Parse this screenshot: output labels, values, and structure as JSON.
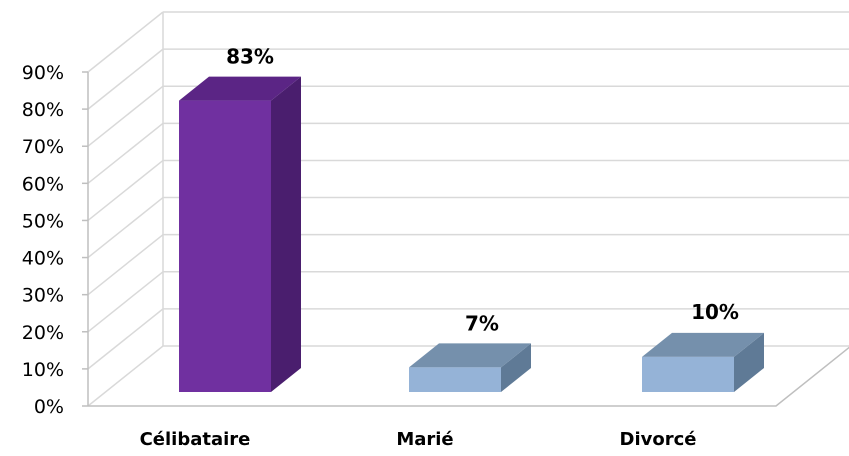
{
  "chart_data": {
    "type": "bar",
    "style": "3d-column",
    "categories": [
      "Célibataire",
      "Marié",
      "Divorcé"
    ],
    "values": [
      83,
      7,
      10
    ],
    "data_labels": [
      "83%",
      "7%",
      "10%"
    ],
    "ylim": [
      0,
      90
    ],
    "yticks": [
      0,
      10,
      20,
      30,
      40,
      50,
      60,
      70,
      80,
      90
    ],
    "ytick_labels": [
      "0%",
      "10%",
      "20%",
      "30%",
      "40%",
      "50%",
      "60%",
      "70%",
      "80%",
      "90%"
    ],
    "title": "",
    "xlabel": "",
    "ylabel": "",
    "grid": true,
    "legend": "none",
    "colors": {
      "Célibataire": {
        "front": "#7030A0",
        "side": "#4A1E6E",
        "top": "#5B2585"
      },
      "Marié": {
        "front": "#95B3D7",
        "side": "#5F7A96",
        "top": "#7590AC"
      },
      "Divorcé": {
        "front": "#95B3D7",
        "side": "#5F7A96",
        "top": "#7590AC"
      }
    },
    "grid_color": "#D9D9D9"
  }
}
